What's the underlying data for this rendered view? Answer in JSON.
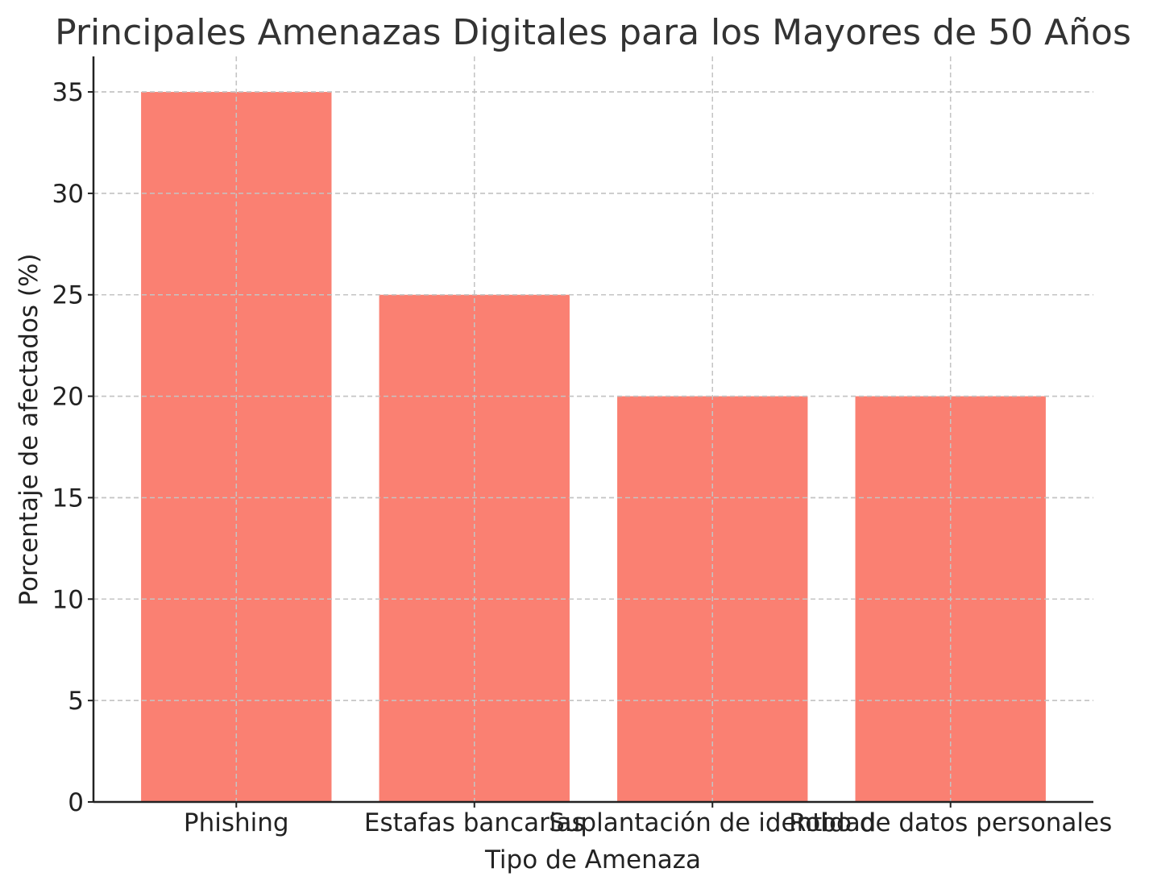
{
  "chart_data": {
    "type": "bar",
    "title": "Principales Amenazas Digitales para los Mayores de 50 Años",
    "xlabel": "Tipo de Amenaza",
    "ylabel": "Porcentaje de afectados (%)",
    "categories": [
      "Phishing",
      "Estafas bancarias",
      "Suplantación de identidad",
      "Robo de datos personales"
    ],
    "values": [
      35,
      25,
      20,
      20
    ],
    "ylim": [
      0,
      36.75
    ],
    "yticks": [
      0,
      5,
      10,
      15,
      20,
      25,
      30,
      35
    ],
    "grid": true,
    "bar_color": "#fa8072"
  }
}
